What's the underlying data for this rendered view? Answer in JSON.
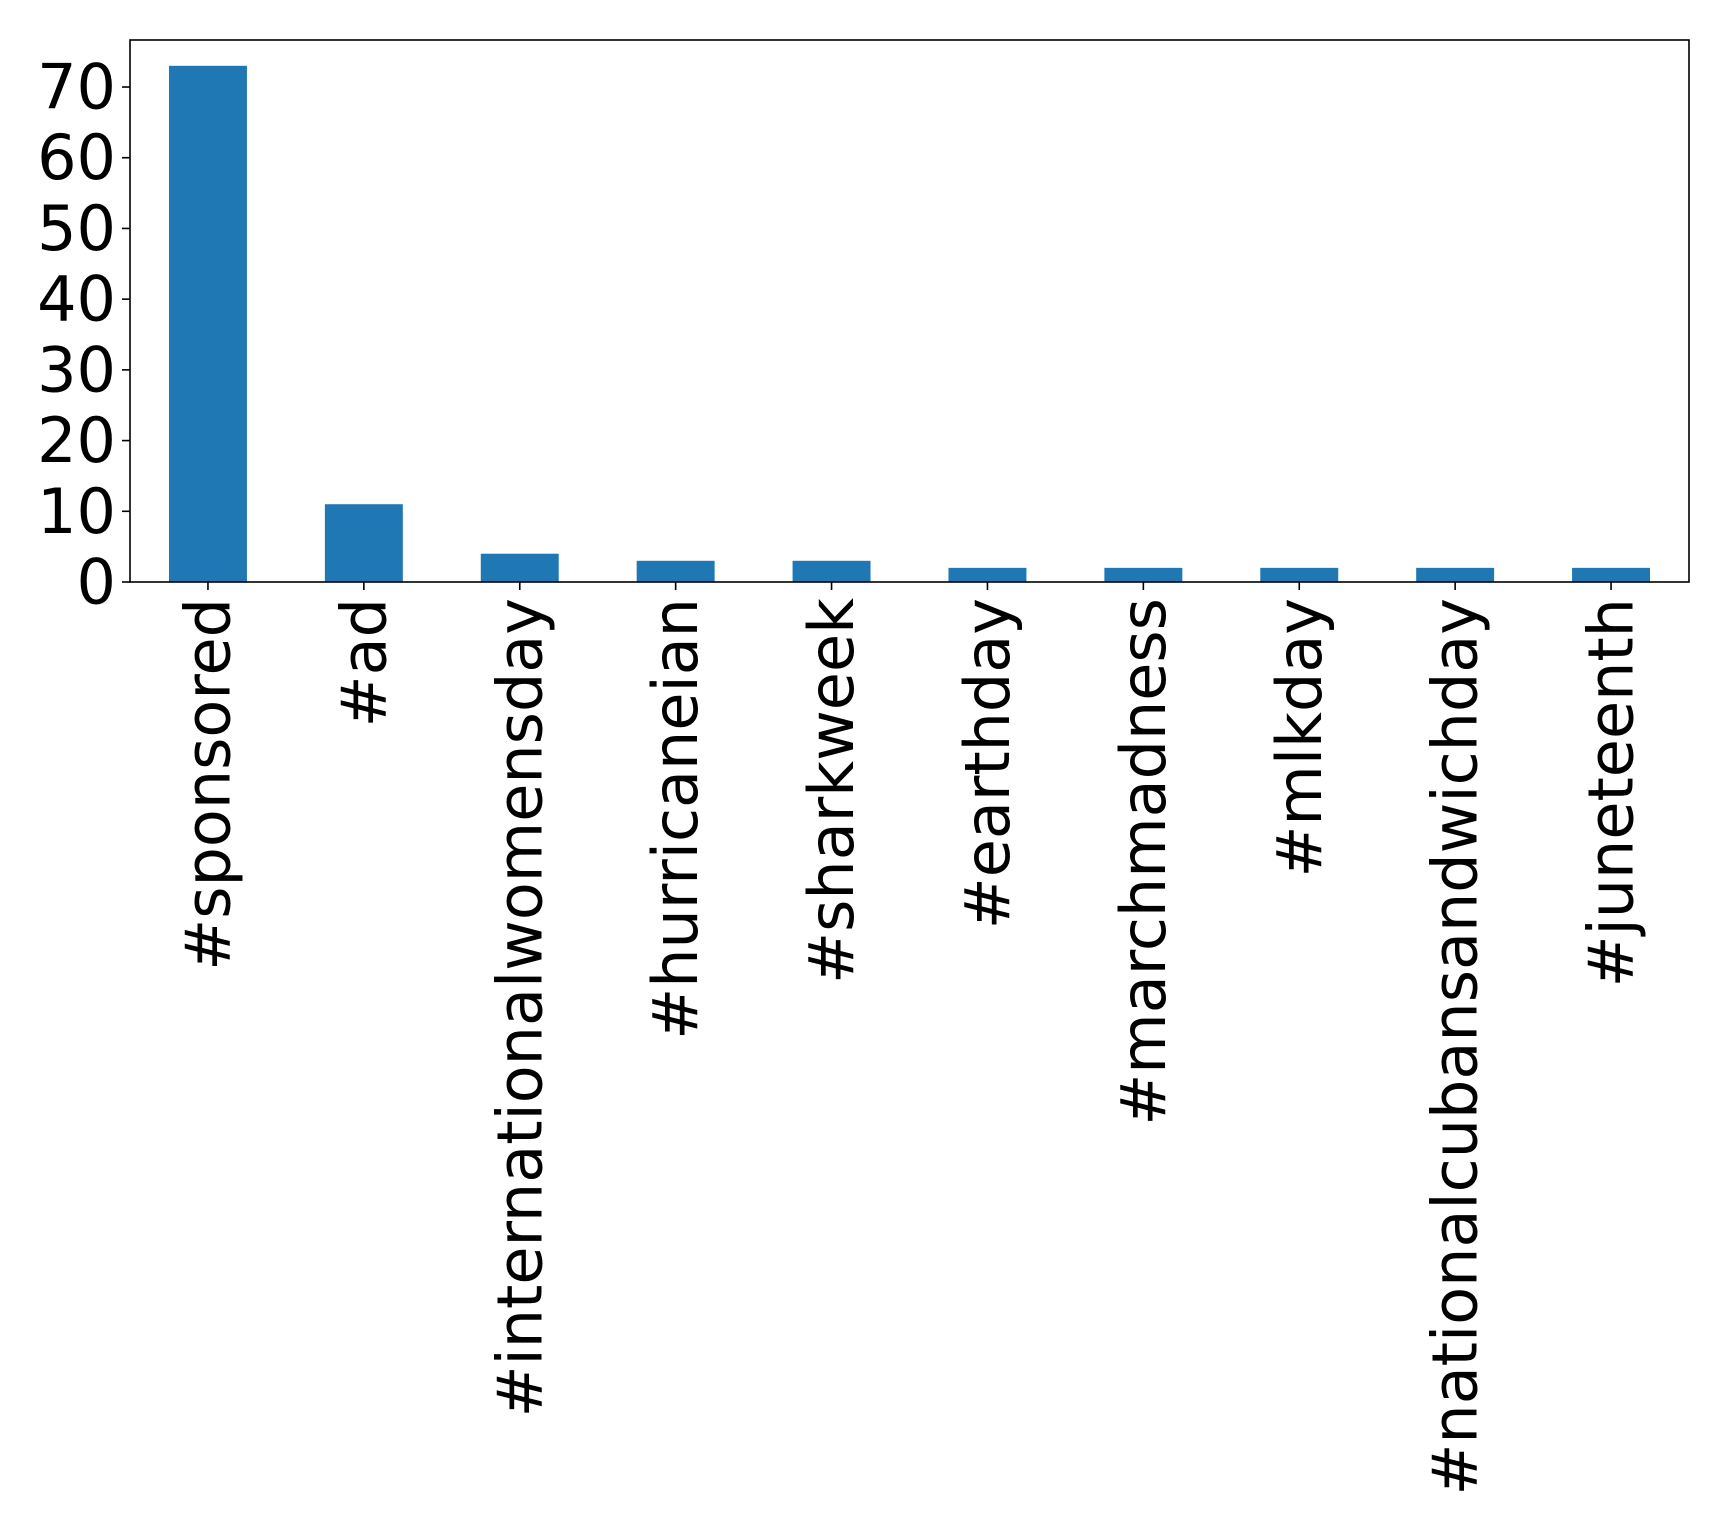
{
  "chart_data": {
    "type": "bar",
    "title": "",
    "xlabel": "",
    "ylabel": "",
    "categories": [
      "#sponsored",
      "#ad",
      "#internationalwomensday",
      "#hurricaneian",
      "#sharkweek",
      "#earthday",
      "#marchmadness",
      "#mlkday",
      "#nationalcubansandwichday",
      "#juneteenth"
    ],
    "values": [
      73,
      11,
      4,
      3,
      3,
      2,
      2,
      2,
      2,
      2
    ],
    "ylim": [
      0,
      76.65
    ],
    "yticks": [
      0,
      10,
      20,
      30,
      40,
      50,
      60,
      70
    ],
    "grid": false,
    "legend": "none",
    "bar_color": "#1f77b4"
  }
}
